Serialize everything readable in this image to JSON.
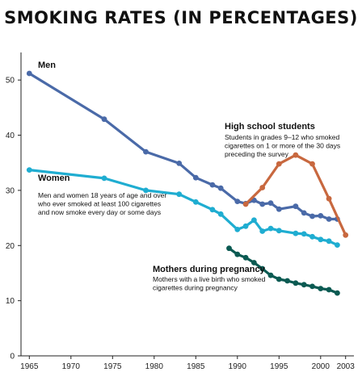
{
  "chart_data": {
    "type": "line",
    "title": "SMOKING RATES (IN PERCENTAGES)",
    "xlabel": "",
    "ylabel": "",
    "xlim": [
      1964,
      2004
    ],
    "ylim": [
      0,
      55
    ],
    "x_ticks": [
      1965,
      1970,
      1975,
      1980,
      1985,
      1990,
      1995,
      2000,
      2003
    ],
    "y_ticks": [
      0,
      10,
      20,
      30,
      40,
      50
    ],
    "grid": false,
    "legend": "inline labels",
    "series": [
      {
        "name": "Men",
        "color": "#4a6aa8",
        "x": [
          1965,
          1974,
          1979,
          1983,
          1985,
          1987,
          1988,
          1990,
          1991,
          1992,
          1993,
          1994,
          1995,
          1997,
          1998,
          1999,
          2000,
          2001,
          2002
        ],
        "y": [
          51.2,
          42.9,
          37.0,
          34.9,
          32.3,
          31.0,
          30.4,
          28.0,
          27.6,
          28.2,
          27.5,
          27.7,
          26.6,
          27.1,
          25.9,
          25.3,
          25.4,
          24.8,
          24.8
        ],
        "label_lines": [
          "Men"
        ],
        "note_lines": []
      },
      {
        "name": "Women",
        "color": "#1fadd1",
        "x": [
          1965,
          1974,
          1979,
          1983,
          1985,
          1987,
          1988,
          1990,
          1991,
          1992,
          1993,
          1994,
          1995,
          1997,
          1998,
          1999,
          2000,
          2001,
          2002
        ],
        "y": [
          33.7,
          32.2,
          30.0,
          29.3,
          27.9,
          26.5,
          25.7,
          22.9,
          23.5,
          24.6,
          22.6,
          23.1,
          22.7,
          22.2,
          22.1,
          21.6,
          21.1,
          20.8,
          20.1
        ],
        "label_lines": [
          "Women"
        ],
        "note_lines": [
          "Men and women 18 years of age and over",
          "who ever smoked at least 100 cigarettes",
          "and now smoke every day or some days"
        ]
      },
      {
        "name": "High school students",
        "color": "#c8683f",
        "x": [
          1991,
          1993,
          1995,
          1997,
          1999,
          2001,
          2003
        ],
        "y": [
          27.5,
          30.5,
          34.8,
          36.4,
          34.8,
          28.5,
          21.9
        ],
        "label_lines": [
          "High school students"
        ],
        "note_lines": [
          "Students in grades 9–12 who smoked",
          "cigarettes on 1 or more of the 30 days",
          "preceding the survey"
        ]
      },
      {
        "name": "Mothers during pregnancy",
        "color": "#0b5a52",
        "x": [
          1989,
          1990,
          1991,
          1992,
          1993,
          1994,
          1995,
          1996,
          1997,
          1998,
          1999,
          2000,
          2001,
          2002
        ],
        "y": [
          19.5,
          18.4,
          17.8,
          16.9,
          15.8,
          14.6,
          13.9,
          13.6,
          13.2,
          12.9,
          12.6,
          12.2,
          12.0,
          11.4
        ],
        "label_lines": [
          "Mothers during pregnancy"
        ],
        "note_lines": [
          "Mothers with a live birth who smoked",
          "cigarettes during pregnancy"
        ]
      }
    ]
  }
}
